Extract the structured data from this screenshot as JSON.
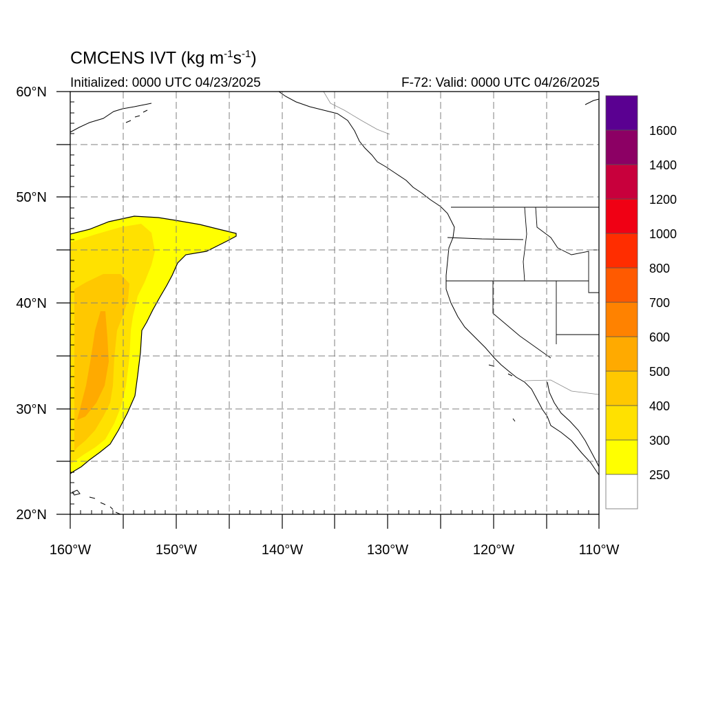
{
  "title": {
    "main": "CMCENS IVT (kg m",
    "sup1": "-1",
    "mid": "s",
    "sup2": "-1",
    "end": ")"
  },
  "subtitle": {
    "left": "Initialized: 0000 UTC 04/23/2025",
    "right": "F-72: Valid: 0000 UTC 04/26/2025"
  },
  "axes": {
    "lon": [
      {
        "value": -160,
        "label": "160°W"
      },
      {
        "value": -150,
        "label": "150°W"
      },
      {
        "value": -140,
        "label": "140°W"
      },
      {
        "value": -130,
        "label": "130°W"
      },
      {
        "value": -120,
        "label": "120°W"
      },
      {
        "value": -110,
        "label": "110°W"
      }
    ],
    "lat": [
      {
        "value": 60,
        "label": "60°N"
      },
      {
        "value": 50,
        "label": "50°N"
      },
      {
        "value": 40,
        "label": "40°N"
      },
      {
        "value": 30,
        "label": "30°N"
      },
      {
        "value": 20,
        "label": "20°N"
      }
    ],
    "lon_range": [
      -160,
      -110
    ],
    "lat_range": [
      20,
      60
    ],
    "grid": "dashed every 5 degrees"
  },
  "colorbar": {
    "levels": [
      {
        "label": "250",
        "color": "#ffff00"
      },
      {
        "label": "300",
        "color": "#ffe100"
      },
      {
        "label": "400",
        "color": "#ffc800"
      },
      {
        "label": "500",
        "color": "#ffaa00"
      },
      {
        "label": "600",
        "color": "#ff8200"
      },
      {
        "label": "700",
        "color": "#ff5a00"
      },
      {
        "label": "800",
        "color": "#ff2d00"
      },
      {
        "label": "1000",
        "color": "#f00014"
      },
      {
        "label": "1200",
        "color": "#c8003c"
      },
      {
        "label": "1400",
        "color": "#8c0064"
      },
      {
        "label": "1600",
        "color": "#5a0091"
      }
    ],
    "below_color": "#ffffff"
  }
}
